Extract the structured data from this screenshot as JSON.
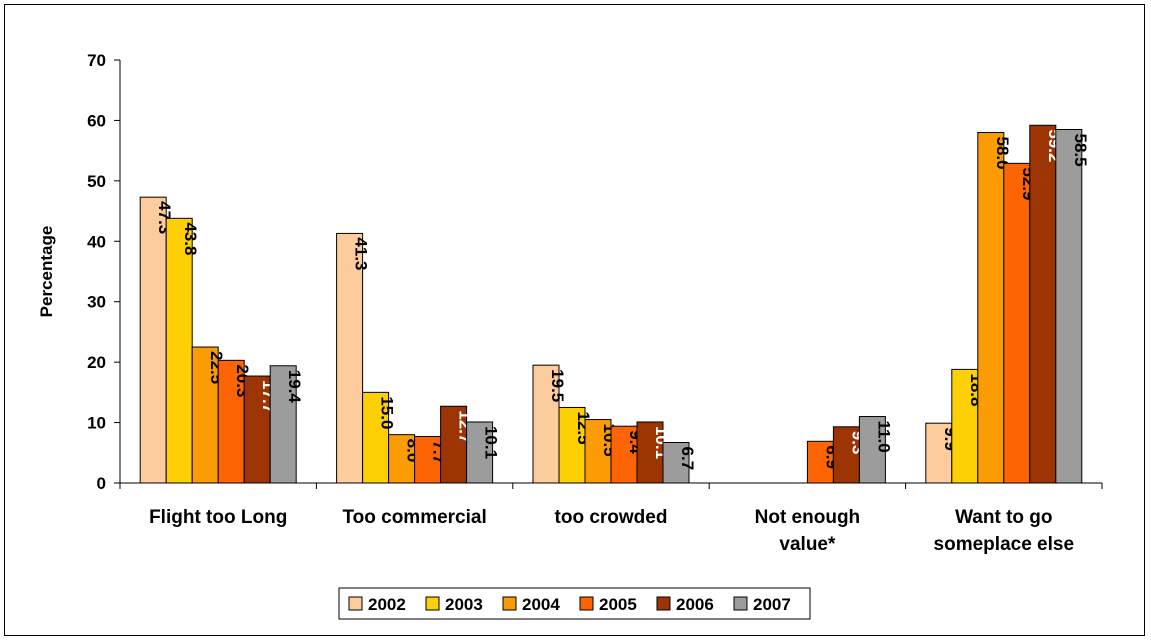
{
  "chart_data": {
    "type": "bar",
    "title": "",
    "xlabel": "",
    "ylabel": "Percentage",
    "ylim": [
      0,
      70
    ],
    "yticks": [
      0,
      10,
      20,
      30,
      40,
      50,
      60,
      70
    ],
    "grid": false,
    "legend_position": "bottom",
    "categories": [
      [
        "Flight too Long"
      ],
      [
        "Too commercial"
      ],
      [
        "too crowded"
      ],
      [
        "Not enough",
        "value*"
      ],
      [
        "Want to go",
        "someplace else"
      ]
    ],
    "series": [
      {
        "name": "2002",
        "color": "#fccc9c",
        "label_color": "#000000",
        "values": [
          47.3,
          41.3,
          19.5,
          null,
          9.9
        ]
      },
      {
        "name": "2003",
        "color": "#fcd004",
        "label_color": "#000000",
        "values": [
          43.8,
          15.0,
          12.5,
          null,
          18.8
        ]
      },
      {
        "name": "2004",
        "color": "#fc9c04",
        "label_color": "#000000",
        "values": [
          22.5,
          8.0,
          10.5,
          null,
          58.0
        ]
      },
      {
        "name": "2005",
        "color": "#fc6404",
        "label_color": "#000000",
        "values": [
          20.3,
          7.7,
          9.4,
          6.9,
          52.9
        ]
      },
      {
        "name": "2006",
        "color": "#9c3404",
        "label_color": "#ffffff",
        "values": [
          17.7,
          12.7,
          10.1,
          9.3,
          59.2
        ]
      },
      {
        "name": "2007",
        "color": "#9c9c9c",
        "label_color": "#000000",
        "values": [
          19.4,
          10.1,
          6.7,
          11.0,
          58.5
        ]
      }
    ],
    "value_labels": [
      [
        "47.3",
        "41.3",
        "19.5",
        "",
        "9.9"
      ],
      [
        "43.8",
        "15.0",
        "12.5",
        "",
        "18.8"
      ],
      [
        "22.5",
        "8.0",
        "10.5",
        "",
        "58.0"
      ],
      [
        "20.3",
        "7.7",
        "9.4",
        "6.9",
        "52.9"
      ],
      [
        "17.7",
        "12.7",
        "10.1",
        "9.3",
        "59.2"
      ],
      [
        "19.4",
        "10.1",
        "6.7",
        "11.0",
        "58.5"
      ]
    ]
  }
}
